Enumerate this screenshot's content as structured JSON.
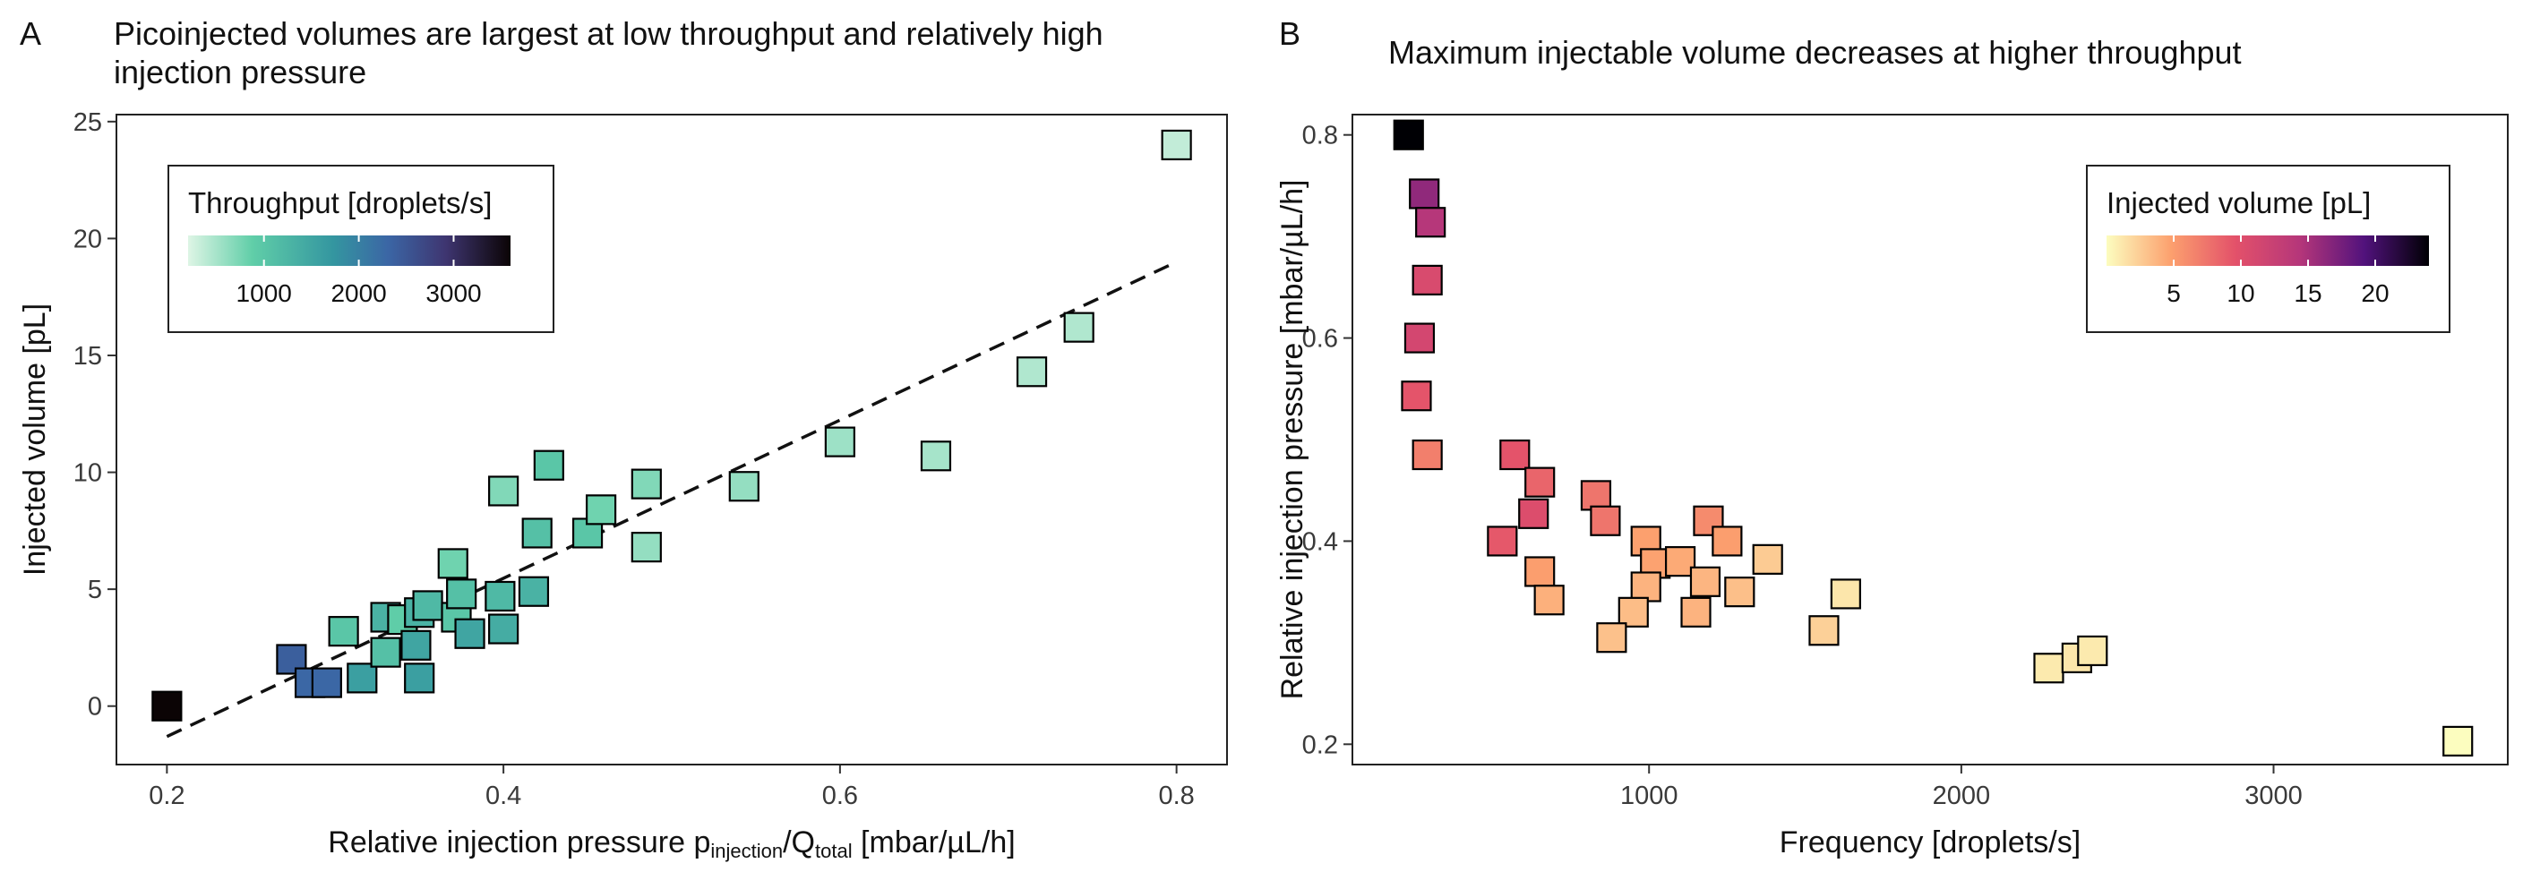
{
  "chart_data": [
    {
      "panel": "A",
      "type": "scatter",
      "title": [
        "Picoinjected volumes are largest at low throughput and relatively high",
        "injection pressure"
      ],
      "xlabel": {
        "prefix": "Relative injection pressure p",
        "sub1": "injection",
        "slash": "/Q",
        "sub2": "total",
        "suffix": " [mbar/µL/h]"
      },
      "ylabel": "Injected volume [pL]",
      "xlim": [
        0.17,
        0.83
      ],
      "ylim": [
        -2.5,
        25.3
      ],
      "xticks": [
        0.2,
        0.4,
        0.6,
        0.8
      ],
      "xtick_labels": [
        "0.2",
        "0.4",
        "0.6",
        "0.8"
      ],
      "yticks": [
        0,
        5,
        10,
        15,
        20,
        25
      ],
      "ytick_labels": [
        "0",
        "5",
        "10",
        "15",
        "20",
        "25"
      ],
      "legend": {
        "title": "Throughput [droplets/s]",
        "ticks": [
          1000,
          2000,
          3000
        ],
        "tick_labels": [
          "1000",
          "2000",
          "3000"
        ],
        "range": [
          200,
          3600
        ],
        "position": "top-left"
      },
      "color_var": "throughput",
      "trend_line": {
        "style": "dashed",
        "x": [
          0.2,
          0.8
        ],
        "y": [
          -1.3,
          19.0
        ]
      },
      "points": [
        {
          "x": 0.2,
          "y": 0.0,
          "c": 3600
        },
        {
          "x": 0.274,
          "y": 2.0,
          "c": 2400
        },
        {
          "x": 0.285,
          "y": 1.0,
          "c": 2300
        },
        {
          "x": 0.295,
          "y": 1.0,
          "c": 2300
        },
        {
          "x": 0.305,
          "y": 3.2,
          "c": 1000
        },
        {
          "x": 0.316,
          "y": 1.2,
          "c": 1600
        },
        {
          "x": 0.33,
          "y": 3.8,
          "c": 1300
        },
        {
          "x": 0.33,
          "y": 2.3,
          "c": 1100
        },
        {
          "x": 0.34,
          "y": 3.7,
          "c": 900
        },
        {
          "x": 0.348,
          "y": 2.6,
          "c": 1500
        },
        {
          "x": 0.35,
          "y": 1.2,
          "c": 1600
        },
        {
          "x": 0.35,
          "y": 4.0,
          "c": 1300
        },
        {
          "x": 0.355,
          "y": 4.3,
          "c": 1200
        },
        {
          "x": 0.37,
          "y": 6.1,
          "c": 800
        },
        {
          "x": 0.372,
          "y": 3.8,
          "c": 1000
        },
        {
          "x": 0.375,
          "y": 4.8,
          "c": 1100
        },
        {
          "x": 0.38,
          "y": 3.1,
          "c": 1500
        },
        {
          "x": 0.398,
          "y": 4.7,
          "c": 1200
        },
        {
          "x": 0.4,
          "y": 3.3,
          "c": 1400
        },
        {
          "x": 0.4,
          "y": 9.2,
          "c": 700
        },
        {
          "x": 0.418,
          "y": 4.9,
          "c": 1300
        },
        {
          "x": 0.42,
          "y": 7.4,
          "c": 1100
        },
        {
          "x": 0.427,
          "y": 10.3,
          "c": 1000
        },
        {
          "x": 0.45,
          "y": 7.4,
          "c": 1000
        },
        {
          "x": 0.458,
          "y": 8.4,
          "c": 800
        },
        {
          "x": 0.485,
          "y": 9.5,
          "c": 700
        },
        {
          "x": 0.485,
          "y": 6.8,
          "c": 600
        },
        {
          "x": 0.543,
          "y": 9.4,
          "c": 600
        },
        {
          "x": 0.6,
          "y": 11.3,
          "c": 550
        },
        {
          "x": 0.657,
          "y": 10.7,
          "c": 500
        },
        {
          "x": 0.714,
          "y": 14.3,
          "c": 450
        },
        {
          "x": 0.742,
          "y": 16.2,
          "c": 450
        },
        {
          "x": 0.8,
          "y": 24.0,
          "c": 350
        }
      ]
    },
    {
      "panel": "B",
      "type": "scatter",
      "title": "Maximum injectable volume decreases at higher throughput",
      "xlabel": "Frequency [droplets/s]",
      "ylabel": "Relative injection pressure [mbar/µL/h]",
      "xlim": [
        50,
        3750
      ],
      "ylim": [
        0.18,
        0.82
      ],
      "xticks": [
        1000,
        2000,
        3000
      ],
      "xtick_labels": [
        "1000",
        "2000",
        "3000"
      ],
      "yticks": [
        0.2,
        0.4,
        0.6,
        0.8
      ],
      "ytick_labels": [
        "0.2",
        "0.4",
        "0.6",
        "0.8"
      ],
      "legend": {
        "title": "Injected volume [pL]",
        "ticks": [
          5,
          10,
          15,
          20
        ],
        "tick_labels": [
          "5",
          "10",
          "15",
          "20"
        ],
        "range": [
          0,
          24
        ],
        "position": "top-right"
      },
      "color_var": "injected_volume",
      "points": [
        {
          "x": 230,
          "y": 0.8,
          "c": 24.0
        },
        {
          "x": 280,
          "y": 0.742,
          "c": 16.2
        },
        {
          "x": 300,
          "y": 0.714,
          "c": 14.3
        },
        {
          "x": 290,
          "y": 0.657,
          "c": 10.7
        },
        {
          "x": 265,
          "y": 0.6,
          "c": 11.3
        },
        {
          "x": 255,
          "y": 0.543,
          "c": 9.4
        },
        {
          "x": 290,
          "y": 0.485,
          "c": 6.8
        },
        {
          "x": 570,
          "y": 0.485,
          "c": 9.5
        },
        {
          "x": 650,
          "y": 0.458,
          "c": 8.4
        },
        {
          "x": 630,
          "y": 0.427,
          "c": 10.3
        },
        {
          "x": 530,
          "y": 0.4,
          "c": 9.2
        },
        {
          "x": 830,
          "y": 0.445,
          "c": 7.4
        },
        {
          "x": 860,
          "y": 0.42,
          "c": 7.4
        },
        {
          "x": 650,
          "y": 0.37,
          "c": 4.9
        },
        {
          "x": 680,
          "y": 0.342,
          "c": 4.0
        },
        {
          "x": 990,
          "y": 0.4,
          "c": 4.8
        },
        {
          "x": 1020,
          "y": 0.378,
          "c": 4.7
        },
        {
          "x": 990,
          "y": 0.355,
          "c": 3.8
        },
        {
          "x": 950,
          "y": 0.33,
          "c": 3.3
        },
        {
          "x": 880,
          "y": 0.305,
          "c": 3.1
        },
        {
          "x": 1100,
          "y": 0.38,
          "c": 4.3
        },
        {
          "x": 1180,
          "y": 0.36,
          "c": 3.7
        },
        {
          "x": 1150,
          "y": 0.33,
          "c": 3.8
        },
        {
          "x": 1190,
          "y": 0.42,
          "c": 6.1
        },
        {
          "x": 1250,
          "y": 0.4,
          "c": 4.9
        },
        {
          "x": 1290,
          "y": 0.35,
          "c": 3.2
        },
        {
          "x": 1380,
          "y": 0.382,
          "c": 2.6
        },
        {
          "x": 1560,
          "y": 0.312,
          "c": 2.3
        },
        {
          "x": 1630,
          "y": 0.348,
          "c": 1.2
        },
        {
          "x": 2280,
          "y": 0.275,
          "c": 1.0
        },
        {
          "x": 2370,
          "y": 0.285,
          "c": 1.2
        },
        {
          "x": 2420,
          "y": 0.292,
          "c": 1.0
        },
        {
          "x": 3590,
          "y": 0.203,
          "c": 0.0
        }
      ]
    }
  ]
}
